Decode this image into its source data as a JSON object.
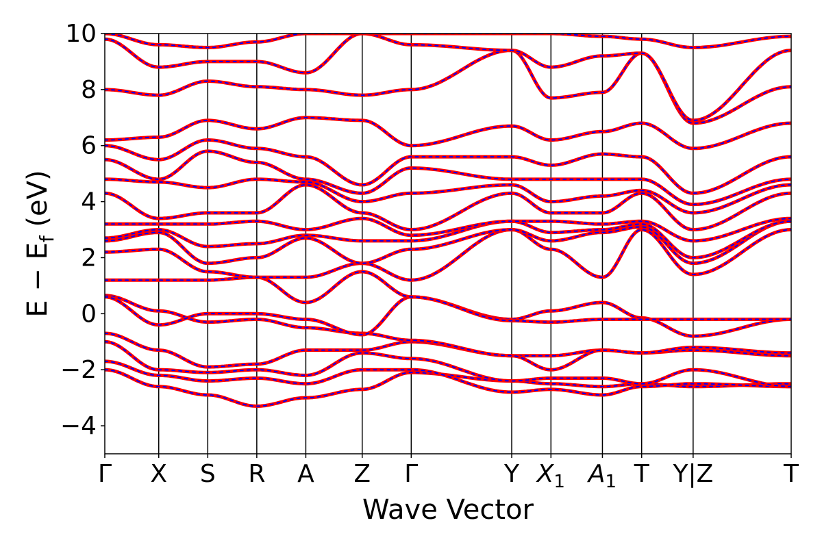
{
  "chart_data": {
    "type": "line",
    "xlabel": "Wave Vector",
    "ylabel": {
      "main": "E − E",
      "subscript": "f",
      "unit": " (eV)"
    },
    "ylim": [
      -5,
      10
    ],
    "yticks": [
      -4,
      -2,
      0,
      2,
      4,
      6,
      8,
      10
    ],
    "ytick_labels": [
      "−4",
      "−2",
      "0",
      "2",
      "4",
      "6",
      "8",
      "10"
    ],
    "xlim": [
      0,
      14
    ],
    "kpath": [
      {
        "pos": 0,
        "label": "Γ"
      },
      {
        "pos": 1.1,
        "label": "X"
      },
      {
        "pos": 2.1,
        "label": "S"
      },
      {
        "pos": 3.1,
        "label": "R"
      },
      {
        "pos": 4.1,
        "label": "A"
      },
      {
        "pos": 5.25,
        "label": "Z"
      },
      {
        "pos": 6.25,
        "label": "Γ"
      },
      {
        "pos": 8.3,
        "label": "Y"
      },
      {
        "pos": 9.1,
        "label": "X",
        "sub": "1"
      },
      {
        "pos": 10.15,
        "label": "A",
        "sub": "1"
      },
      {
        "pos": 10.95,
        "label": "T"
      },
      {
        "pos": 12.0,
        "label": "Y|Z"
      },
      {
        "pos": 14.0,
        "label": "T"
      }
    ],
    "series": [
      {
        "color": "#ff0000"
      },
      {
        "color": "#0000ff",
        "dashed": true
      }
    ],
    "bands": [
      [
        -2.0,
        -2.6,
        -2.9,
        -3.3,
        -3.0,
        -2.7,
        -2.1,
        -2.4,
        -2.5,
        -2.6,
        -2.5,
        -2.6,
        -2.5
      ],
      [
        -1.7,
        -2.2,
        -2.4,
        -2.3,
        -2.5,
        -2.0,
        -2.0,
        -2.8,
        -2.7,
        -2.9,
        -2.6,
        -2.5,
        -2.6
      ],
      [
        -1.0,
        -2.0,
        -2.1,
        -2.0,
        -2.2,
        -1.4,
        -1.6,
        -2.4,
        -2.3,
        -2.3,
        -2.5,
        -2.0,
        -2.6
      ],
      [
        -0.7,
        -1.3,
        -1.9,
        -1.8,
        -1.3,
        -1.3,
        -1.0,
        -1.5,
        -1.5,
        -1.3,
        -1.4,
        -1.3,
        -1.5
      ],
      [
        0.65,
        0.1,
        -0.3,
        -0.2,
        -0.5,
        -0.7,
        -0.95,
        -1.5,
        -2.0,
        -1.3,
        -1.4,
        -1.2,
        -1.4
      ],
      [
        0.6,
        -0.4,
        0.0,
        0.0,
        -0.2,
        -0.75,
        0.6,
        -0.2,
        0.1,
        0.4,
        -0.15,
        -0.8,
        -0.2
      ],
      [
        1.2,
        1.2,
        1.2,
        1.3,
        0.4,
        1.5,
        0.6,
        -0.25,
        -0.3,
        -0.2,
        -0.2,
        -0.2,
        -0.2
      ],
      [
        2.2,
        2.3,
        1.5,
        1.3,
        1.3,
        1.8,
        1.2,
        3.0,
        2.3,
        1.3,
        3.0,
        1.4,
        3.0
      ],
      [
        2.6,
        2.9,
        1.8,
        2.0,
        2.7,
        1.8,
        2.3,
        3.0,
        2.6,
        2.9,
        3.1,
        1.8,
        3.3
      ],
      [
        2.7,
        3.0,
        2.4,
        2.5,
        2.8,
        2.6,
        2.6,
        3.3,
        2.9,
        3.0,
        3.2,
        2.0,
        3.3
      ],
      [
        3.2,
        3.2,
        3.2,
        3.3,
        3.0,
        3.4,
        2.8,
        3.3,
        3.3,
        3.2,
        3.3,
        2.6,
        3.4
      ],
      [
        4.3,
        3.4,
        3.6,
        3.6,
        4.6,
        3.6,
        3.0,
        4.3,
        3.6,
        3.6,
        4.3,
        3.0,
        4.3
      ],
      [
        4.8,
        4.7,
        4.5,
        4.8,
        4.7,
        4.0,
        4.3,
        4.6,
        4.0,
        4.2,
        4.4,
        3.6,
        4.6
      ],
      [
        5.5,
        4.8,
        5.8,
        5.4,
        4.8,
        4.3,
        5.2,
        4.8,
        4.8,
        4.8,
        4.8,
        3.9,
        4.8
      ],
      [
        6.0,
        5.5,
        6.2,
        5.9,
        5.6,
        4.6,
        5.6,
        5.6,
        5.3,
        5.7,
        5.6,
        4.3,
        5.6
      ],
      [
        6.2,
        6.3,
        6.9,
        6.6,
        7.0,
        6.9,
        6.0,
        6.7,
        6.2,
        6.5,
        6.8,
        5.9,
        6.8
      ],
      [
        8.0,
        7.8,
        8.3,
        8.1,
        8.0,
        7.8,
        8.0,
        9.4,
        7.7,
        7.9,
        9.3,
        6.8,
        8.1
      ],
      [
        9.8,
        8.8,
        9.0,
        9.0,
        8.6,
        10.0,
        9.6,
        9.4,
        8.8,
        9.2,
        9.3,
        6.9,
        9.4
      ],
      [
        10.0,
        9.6,
        9.5,
        9.7,
        10.0,
        10.0,
        10.0,
        10.0,
        10.0,
        9.9,
        9.8,
        9.5,
        9.9
      ]
    ]
  }
}
